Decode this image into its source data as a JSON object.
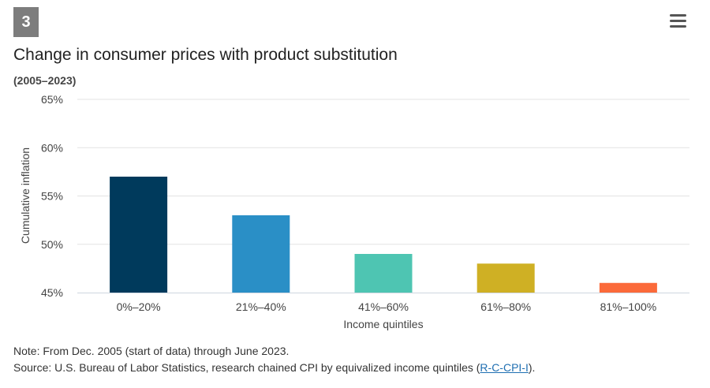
{
  "figure_number": "3",
  "menu_icon": "hamburger-menu-icon",
  "chart_data": {
    "type": "bar",
    "title": "Change in consumer prices with product substitution",
    "subtitle": "(2005–2023)",
    "xlabel": "Income quintiles",
    "ylabel": "Cumulative inflation",
    "categories": [
      "0%–20%",
      "21%–40%",
      "41%–60%",
      "61%–80%",
      "81%–100%"
    ],
    "values": [
      57,
      53,
      49,
      48,
      46
    ],
    "colors": [
      "#003a5c",
      "#2a8fc6",
      "#4ec5b2",
      "#cfb024",
      "#fb6a3a"
    ],
    "ylim": [
      45,
      65
    ],
    "yticks": [
      45,
      50,
      55,
      60,
      65
    ],
    "ytick_labels": [
      "45%",
      "50%",
      "55%",
      "60%",
      "65%"
    ],
    "grid": true,
    "legend": "none"
  },
  "note": "Note: From Dec. 2005 (start of data) through June 2023.",
  "source": {
    "prefix": "Source: U.S. Bureau of Labor Statistics, research chained CPI by equivalized income quintiles (",
    "link_text": "R-C-CPI-I",
    "suffix": ")."
  }
}
